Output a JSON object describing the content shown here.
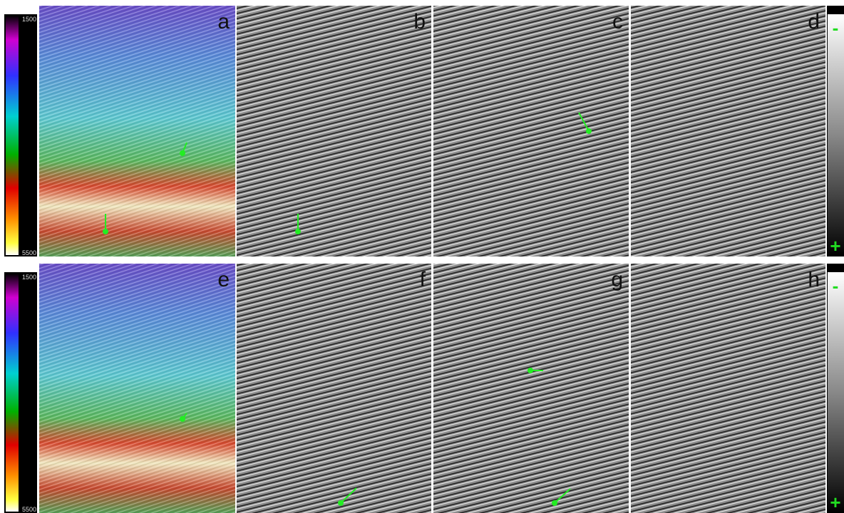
{
  "colorbars": [
    {
      "top": 1500,
      "bottom": 5500
    },
    {
      "top": 1500,
      "bottom": 5500
    }
  ],
  "panels": [
    "a",
    "b",
    "c",
    "d",
    "e",
    "f",
    "g",
    "h"
  ],
  "grayscale_bars": [
    {
      "top": "-",
      "bottom": "+"
    },
    {
      "top": "-",
      "bottom": "+"
    }
  ]
}
